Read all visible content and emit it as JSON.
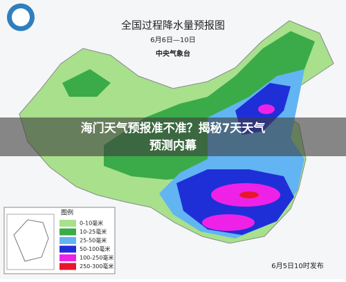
{
  "map": {
    "title": "全国过程降水量预报图",
    "period": "6月6日—10日",
    "issuer": "中央气象台",
    "release": "6月5日10时发布",
    "legend": {
      "title": "图例",
      "items": [
        {
          "label": "0-10毫米",
          "color": "#a8e08c"
        },
        {
          "label": "10-25毫米",
          "color": "#3aab48"
        },
        {
          "label": "25-50毫米",
          "color": "#62b4f2"
        },
        {
          "label": "50-100毫米",
          "color": "#1f2fd8"
        },
        {
          "label": "100-250毫米",
          "color": "#ee22e6"
        },
        {
          "label": "250-300毫米",
          "color": "#e8162c"
        }
      ]
    }
  },
  "caption": {
    "lines": [
      "海门天气预报准不准？揭秘7天天气",
      "预测内幕"
    ]
  }
}
